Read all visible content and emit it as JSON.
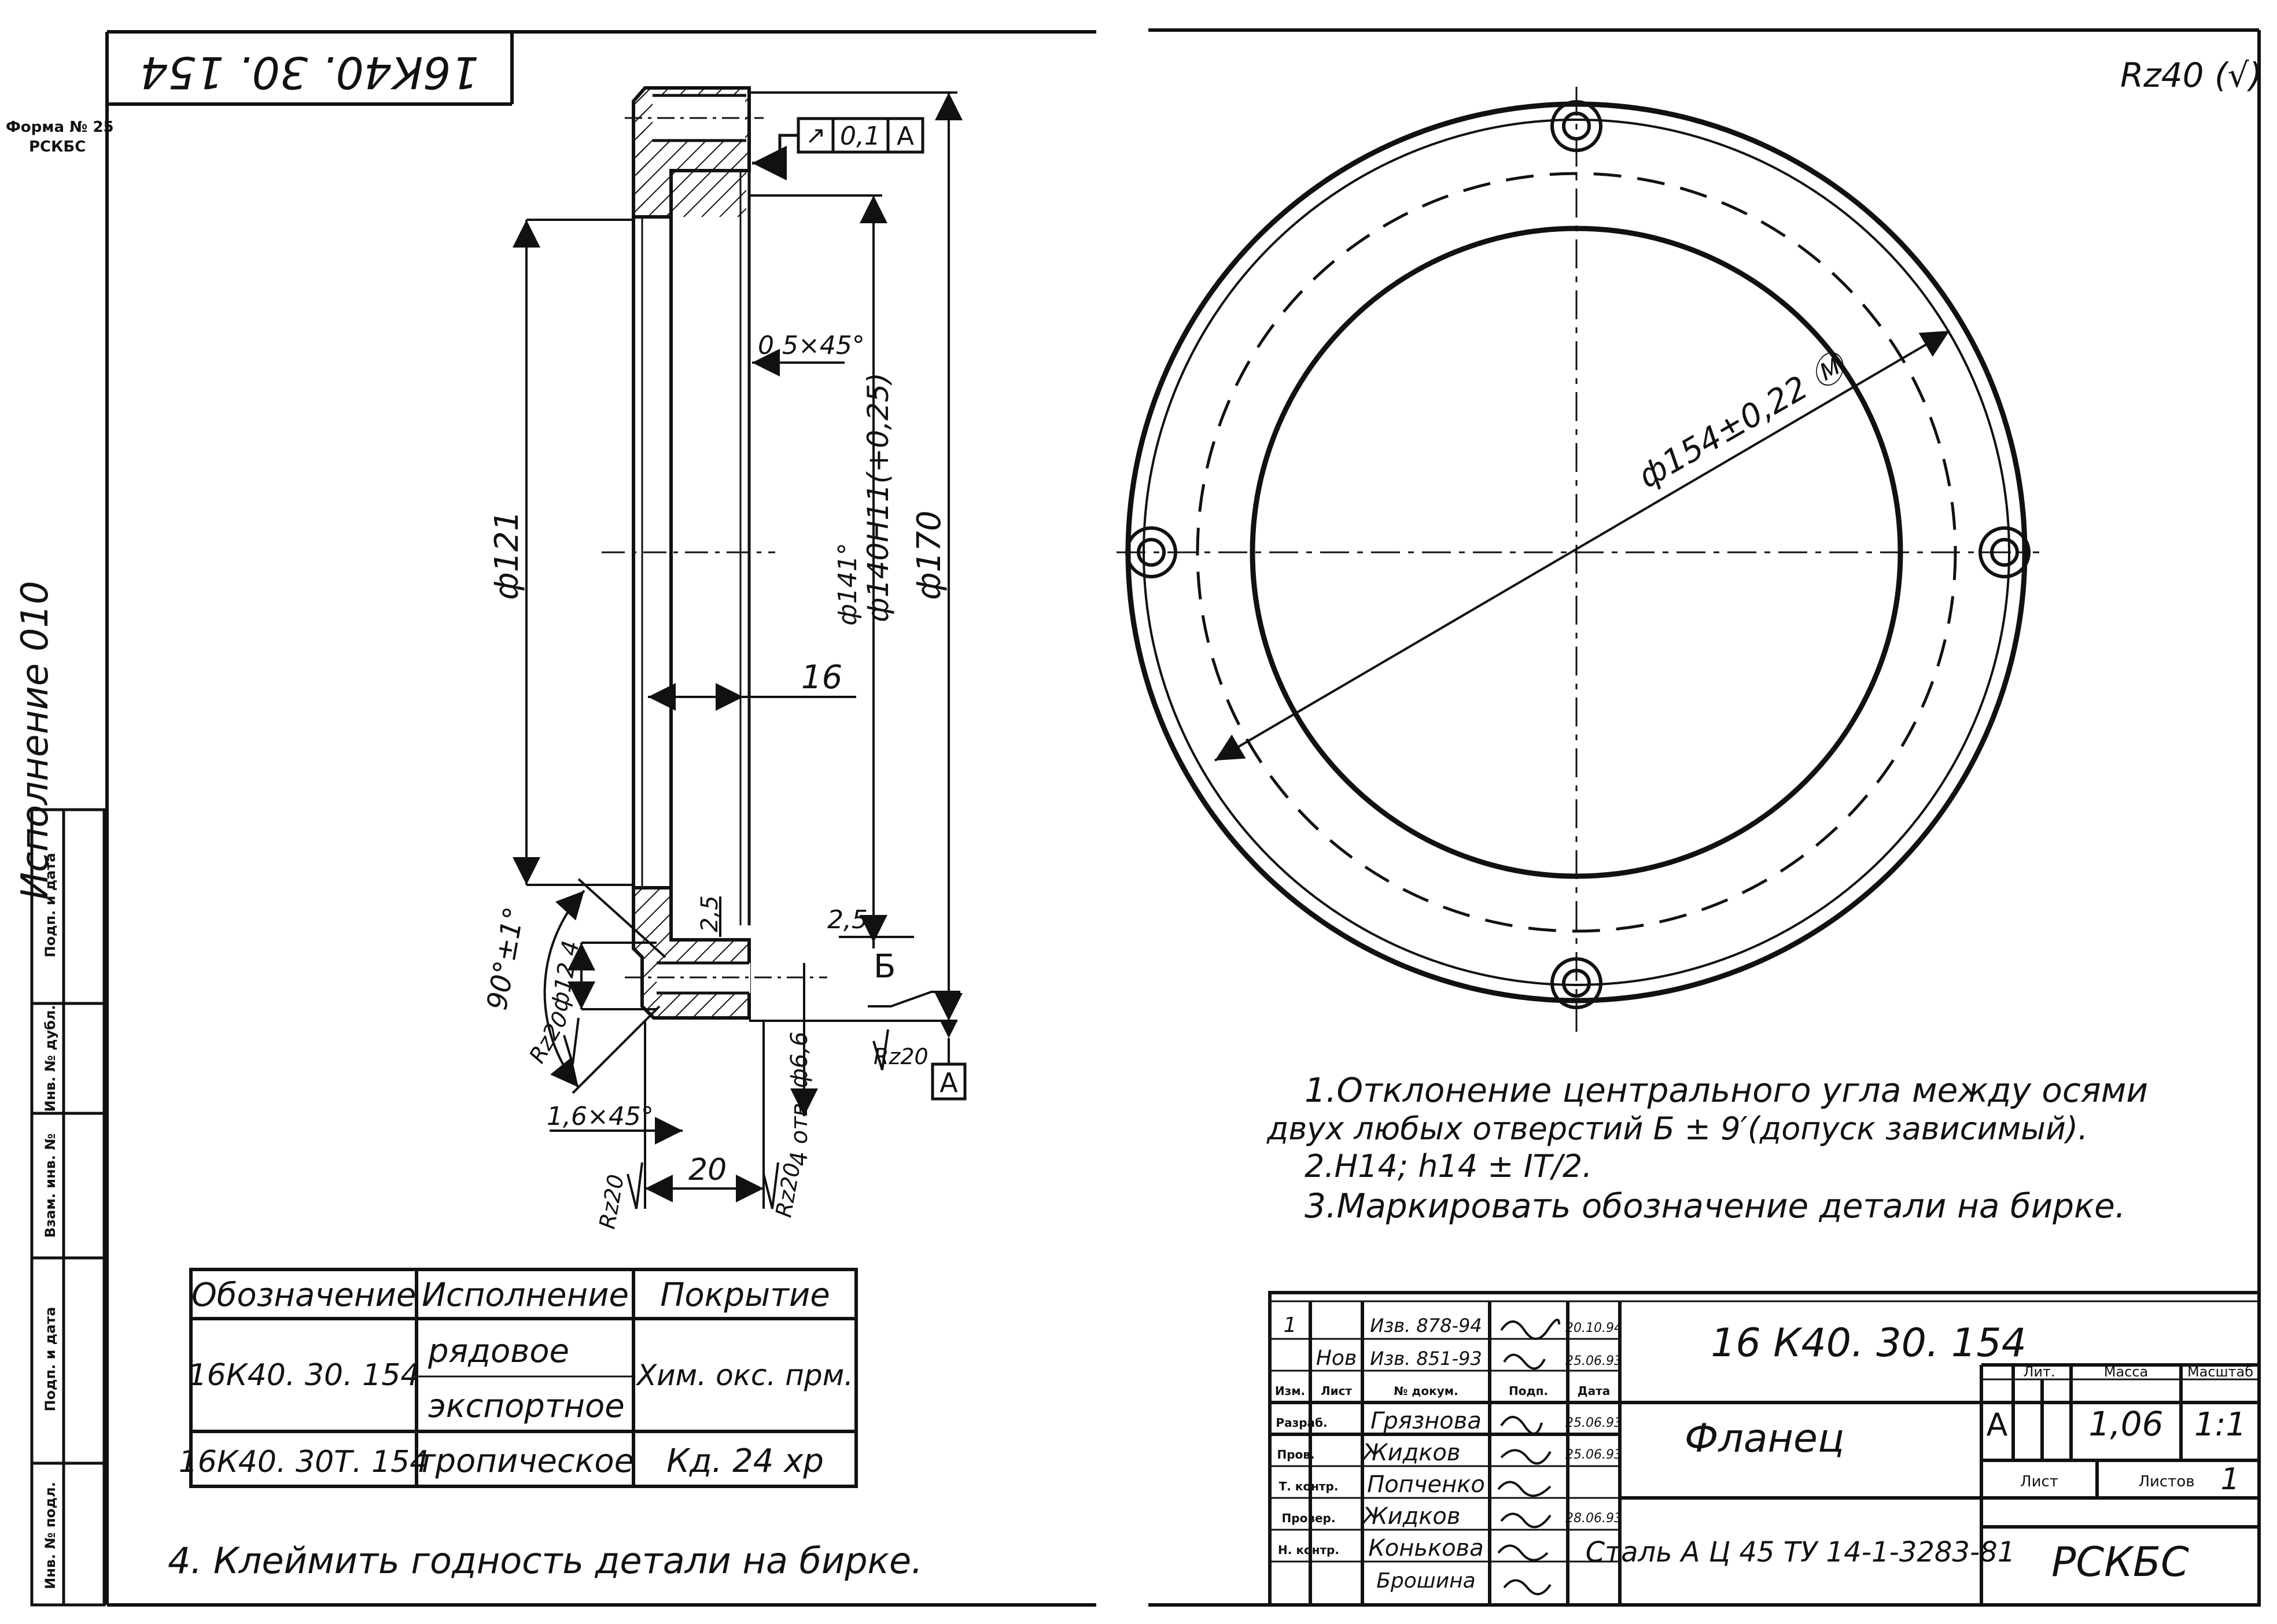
{
  "form_label": {
    "line1": "Форма № 25",
    "line2": "РСКБС"
  },
  "side_caption": "Исполнение 010",
  "left_column_labels": [
    "Подп. и дата",
    "Инв. № дубл.",
    "Взам. инв. №",
    "Подп. и дата",
    "Инв. № подл."
  ],
  "rotated_title": "16К40. 30. 154",
  "roughness_mark": "Rz40 (√)",
  "tolerance_frame": {
    "symbol": "↗",
    "value": "0,1",
    "datum": "А"
  },
  "section_dims": {
    "chamfer_top": "0,5×45°",
    "fit_dim": "ф140Н11(+0,25)",
    "dia_141": "ф141°",
    "dia_121": "ф121",
    "dia_170": "ф170",
    "width_16": "16",
    "dim_2_5_a": "2,5",
    "dim_2_5_b": "2,5",
    "angle_90": "90°±1°",
    "dia_12_4": "ф12,4",
    "rz20_a": "Rz20",
    "rz20_b": "Rz20",
    "rz20_c": "Rz20",
    "rz20_d": "Rz20",
    "label_b": "Б",
    "datum_a": "А",
    "chamfer_bottom": "1,6×45°",
    "width_20": "20",
    "holes": "4 отв. ф6,6"
  },
  "flange_dim": "ф154±0,22 Ⓜ",
  "notes": [
    "1.Отклонение центрального угла между осями",
    "двух любых отверстий Б ± 9′(допуск зависимый).",
    "2.Н14; h14 ± IT/2.",
    "3.Маркировать обозначение детали на бирке."
  ],
  "note4": "4. Клеймить годность детали на бирке.",
  "exec_table": {
    "headers": [
      "Обозначение",
      "Исполнение",
      "Покрытие"
    ],
    "rows": [
      {
        "designation": "16К40. 30. 154",
        "exec1": "рядовое",
        "exec2": "экспортное",
        "coating": "Хим. окс. прм."
      },
      {
        "designation": "16К40. 30Т. 154",
        "exec1": "тропическое",
        "coating": "Кд. 24 хр"
      }
    ]
  },
  "title_block": {
    "doc_number": "16 К40. 30. 154",
    "part_name": "Фланец",
    "material": "Сталь А Ц 45 ТУ 14-1-3283-81",
    "org": "РСКБС",
    "lit_label": "Лит.",
    "lit_value": "А",
    "mass_label": "Масса",
    "mass_value": "1,06",
    "scale_label": "Масштаб",
    "scale_value": "1:1",
    "sheet_label": "Лист",
    "sheets_label": "Листов",
    "sheets_value": "1",
    "rev_headers": [
      "Изм.",
      "Лист",
      "№ докум.",
      "Подп.",
      "Дата"
    ],
    "rev_rows": [
      {
        "change": "1",
        "sheet": "",
        "doc": "Изв. 878-94",
        "sign": "",
        "date": "20.10.94"
      },
      {
        "change": "",
        "sheet": "Нов",
        "doc": "Изв. 851-93",
        "sign": "",
        "date": "25.06.93"
      }
    ],
    "roles": [
      {
        "role": "Разраб.",
        "name": "Грязнова",
        "date": "25.06.93"
      },
      {
        "role": "Пров.",
        "name": "Жидков",
        "date": "25.06.93"
      },
      {
        "role": "Т. контр.",
        "name": "Попченко",
        "date": ""
      },
      {
        "role": "Провер.",
        "name": "Жидков",
        "date": "28.06.93"
      },
      {
        "role": "Н. контр.",
        "name": "Конькова",
        "date": ""
      },
      {
        "role": "",
        "name": "Брошина",
        "date": ""
      }
    ]
  }
}
